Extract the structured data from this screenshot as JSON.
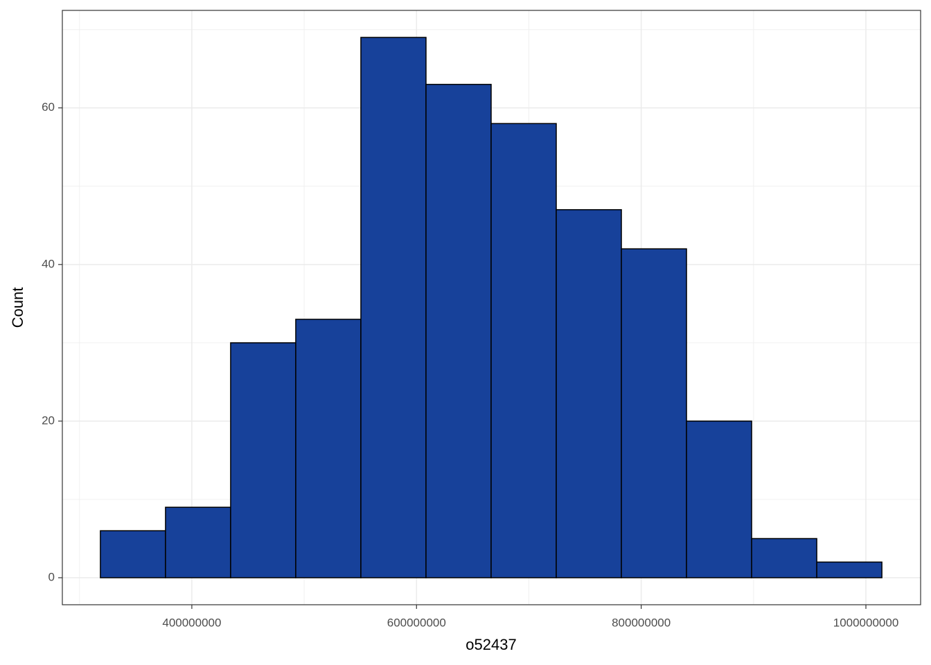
{
  "chart_data": {
    "type": "histogram",
    "x_label": "o52437",
    "y_label": "Count",
    "bins": [
      318600000,
      376570000,
      434540000,
      492510000,
      550480000,
      608450000,
      666420000,
      724390000,
      782360000,
      840330000,
      898300000,
      956270000,
      1014240000
    ],
    "values": [
      6,
      9,
      30,
      33,
      69,
      63,
      58,
      47,
      42,
      20,
      5,
      2
    ],
    "color": "#17419a",
    "edge_color": "#000000",
    "xlim": [
      284750000,
      1048700000
    ],
    "xticks": [
      400000000,
      600000000,
      800000000,
      1000000000
    ],
    "ylim": [
      -3.45,
      72.45
    ],
    "yticks": [
      0,
      20,
      40,
      60
    ],
    "grid": true
  }
}
